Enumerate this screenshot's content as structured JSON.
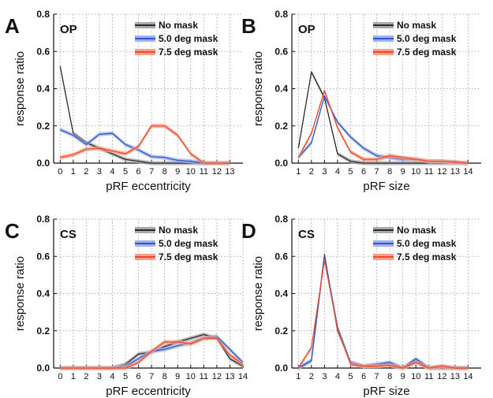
{
  "chart_data": [
    {
      "panel": "A",
      "tag": "OP",
      "type": "line",
      "xlabel": "pRF eccentricity",
      "ylabel": "response ratio",
      "x": [
        0,
        1,
        2,
        3,
        4,
        5,
        6,
        7,
        8,
        9,
        10,
        11,
        12,
        13
      ],
      "xlim": [
        -0.5,
        14
      ],
      "ylim": [
        0,
        0.8
      ],
      "yticks": [
        0.0,
        0.2,
        0.4,
        0.6,
        0.8
      ],
      "grid": true,
      "legend": "top-right",
      "series": [
        {
          "name": "No mask",
          "color": "#2b2b2b",
          "band": "#aaaaaa",
          "values": [
            0.52,
            0.16,
            0.11,
            0.08,
            0.05,
            0.02,
            0.01,
            0.0,
            0.0,
            0.0,
            0.0,
            0.0,
            0.0,
            0.0
          ]
        },
        {
          "name": "5.0 deg mask",
          "color": "#2f58c8",
          "band": "#9fb2ee",
          "values": [
            0.18,
            0.15,
            0.1,
            0.155,
            0.16,
            0.1,
            0.07,
            0.035,
            0.03,
            0.015,
            0.01,
            0.0,
            0.0,
            0.0
          ]
        },
        {
          "name": "7.5 deg mask",
          "color": "#ec4a2c",
          "band": "#f5a08a",
          "values": [
            0.03,
            0.045,
            0.075,
            0.08,
            0.065,
            0.05,
            0.09,
            0.2,
            0.2,
            0.15,
            0.05,
            0.0,
            0.0,
            0.0
          ]
        }
      ]
    },
    {
      "panel": "B",
      "tag": "OP",
      "type": "line",
      "xlabel": "pRF size",
      "ylabel": "response ratio",
      "x": [
        1,
        2,
        3,
        4,
        5,
        6,
        7,
        8,
        9,
        10,
        11,
        12,
        13,
        14
      ],
      "xlim": [
        0.5,
        15
      ],
      "ylim": [
        0,
        0.8
      ],
      "yticks": [
        0.0,
        0.2,
        0.4,
        0.6,
        0.8
      ],
      "grid": true,
      "legend": "top-right",
      "series": [
        {
          "name": "No mask",
          "color": "#2b2b2b",
          "band": "#aaaaaa",
          "values": [
            0.08,
            0.49,
            0.35,
            0.05,
            0.01,
            0.0,
            0.0,
            0.0,
            0.0,
            0.0,
            0.0,
            0.0,
            0.0,
            0.0
          ]
        },
        {
          "name": "5.0 deg mask",
          "color": "#2f58c8",
          "band": "#9fb2ee",
          "values": [
            0.03,
            0.11,
            0.36,
            0.22,
            0.14,
            0.08,
            0.04,
            0.03,
            0.02,
            0.02,
            0.01,
            0.01,
            0.005,
            0.0
          ]
        },
        {
          "name": "7.5 deg mask",
          "color": "#ec4a2c",
          "band": "#f5a08a",
          "values": [
            0.03,
            0.16,
            0.39,
            0.19,
            0.06,
            0.02,
            0.02,
            0.04,
            0.03,
            0.02,
            0.01,
            0.01,
            0.005,
            0.0
          ]
        }
      ]
    },
    {
      "panel": "C",
      "tag": "CS",
      "type": "line",
      "xlabel": "pRF eccentricity",
      "ylabel": "response ratio",
      "x": [
        0,
        1,
        2,
        3,
        4,
        5,
        6,
        7,
        8,
        9,
        10,
        11,
        12,
        13,
        14
      ],
      "xlim": [
        -0.5,
        14
      ],
      "ylim": [
        0,
        0.8
      ],
      "yticks": [
        0.0,
        0.2,
        0.4,
        0.6,
        0.8
      ],
      "grid": true,
      "legend": "top-right",
      "series": [
        {
          "name": "No mask",
          "color": "#2b2b2b",
          "band": "#aaaaaa",
          "values": [
            0.0,
            0.0,
            0.0,
            0.0,
            0.0,
            0.02,
            0.075,
            0.085,
            0.115,
            0.14,
            0.16,
            0.18,
            0.16,
            0.05,
            0.01
          ]
        },
        {
          "name": "5.0 deg mask",
          "color": "#2f58c8",
          "band": "#9fb2ee",
          "values": [
            0.0,
            0.0,
            0.0,
            0.0,
            0.0,
            0.01,
            0.05,
            0.09,
            0.1,
            0.12,
            0.135,
            0.16,
            0.17,
            0.1,
            0.03
          ]
        },
        {
          "name": "7.5 deg mask",
          "color": "#ec4a2c",
          "band": "#f5a08a",
          "values": [
            0.0,
            0.0,
            0.0,
            0.0,
            0.0,
            0.0,
            0.03,
            0.09,
            0.14,
            0.14,
            0.13,
            0.16,
            0.16,
            0.07,
            0.02
          ]
        }
      ]
    },
    {
      "panel": "D",
      "tag": "CS",
      "type": "line",
      "xlabel": "pRF size",
      "ylabel": "response ratio",
      "x": [
        1,
        2,
        3,
        4,
        5,
        6,
        7,
        8,
        9,
        10,
        11,
        12,
        13,
        14
      ],
      "xlim": [
        0.5,
        15
      ],
      "ylim": [
        0,
        0.8
      ],
      "yticks": [
        0.0,
        0.2,
        0.4,
        0.6,
        0.8
      ],
      "grid": true,
      "legend": "top-right",
      "series": [
        {
          "name": "No mask",
          "color": "#2b2b2b",
          "band": "#aaaaaa",
          "values": [
            0.0,
            0.04,
            0.61,
            0.2,
            0.03,
            0.01,
            0.015,
            0.025,
            0.0,
            0.04,
            0.0,
            0.0,
            0.0,
            0.0
          ]
        },
        {
          "name": "5.0 deg mask",
          "color": "#2f58c8",
          "band": "#9fb2ee",
          "values": [
            0.0,
            0.04,
            0.6,
            0.22,
            0.03,
            0.01,
            0.02,
            0.03,
            0.0,
            0.05,
            0.0,
            0.01,
            0.0,
            0.0
          ]
        },
        {
          "name": "7.5 deg mask",
          "color": "#ec4a2c",
          "band": "#f5a08a",
          "values": [
            0.0,
            0.11,
            0.58,
            0.21,
            0.02,
            0.01,
            0.01,
            0.015,
            0.0,
            0.03,
            0.0,
            0.01,
            0.0,
            0.0
          ]
        }
      ]
    }
  ]
}
